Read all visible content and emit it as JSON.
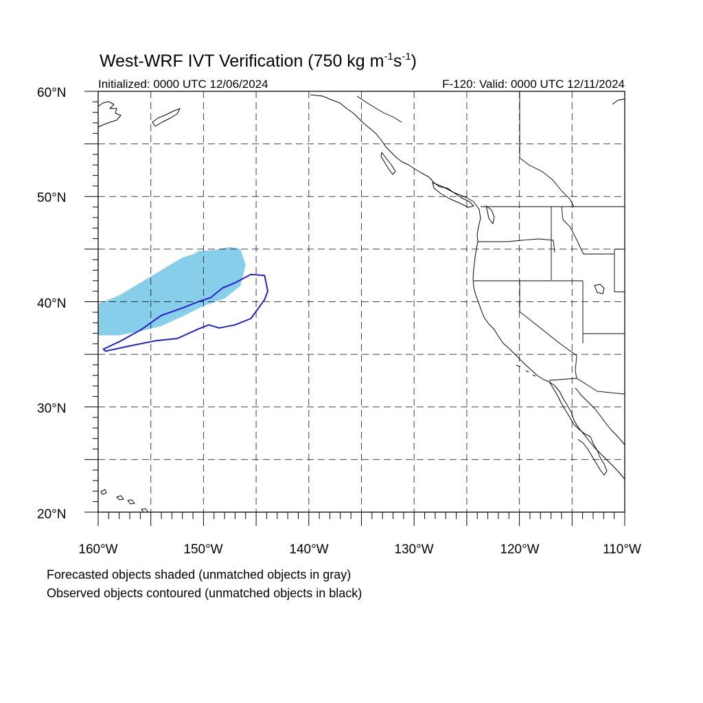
{
  "figure": {
    "title_main": "West-WRF IVT Verification (750 kg m",
    "title_exp1": "-1",
    "title_mid": "s",
    "title_exp2": "-1",
    "title_close": ")",
    "initialized": "Initialized: 0000 UTC 12/06/2024",
    "valid": "F-120: Valid: 0000 UTC 12/11/2024",
    "note_forecast": "Forecasted objects shaded (unmatched objects in gray)",
    "note_observed": "Observed objects contoured (unmatched objects in black)"
  },
  "map": {
    "lon_range": [
      -160,
      -110
    ],
    "lat_range": [
      20,
      60
    ],
    "lat_labels": [
      "60°N",
      "50°N",
      "40°N",
      "30°N",
      "20°N"
    ],
    "lon_labels": [
      "160°W",
      "150°W",
      "140°W",
      "130°W",
      "120°W",
      "110°W"
    ],
    "grid_spacing_deg": 5,
    "grid": "dashed"
  },
  "objects": {
    "forecast": {
      "style": "shaded",
      "color": "#87ceeb",
      "polygon": [
        [
          -160,
          39.8
        ],
        [
          -158,
          40.6
        ],
        [
          -156,
          41.8
        ],
        [
          -154,
          43.0
        ],
        [
          -152,
          44.2
        ],
        [
          -151,
          44.5
        ],
        [
          -150.5,
          44.8
        ],
        [
          -149,
          44.9
        ],
        [
          -147.5,
          45.2
        ],
        [
          -146.5,
          45.0
        ],
        [
          -146.0,
          43.5
        ],
        [
          -146.5,
          41.5
        ],
        [
          -148,
          40.3
        ],
        [
          -150,
          39.6
        ],
        [
          -152,
          38.6
        ],
        [
          -154,
          37.7
        ],
        [
          -156,
          37.2
        ],
        [
          -158,
          36.8
        ],
        [
          -160,
          36.8
        ]
      ]
    },
    "observed": {
      "style": "contour",
      "color": "#1f1fd6",
      "polygon": [
        [
          -159.3,
          35.3
        ],
        [
          -157,
          35.8
        ],
        [
          -154.5,
          36.3
        ],
        [
          -152.5,
          36.5
        ],
        [
          -150.5,
          37.4
        ],
        [
          -149.5,
          37.8
        ],
        [
          -148.5,
          37.5
        ],
        [
          -147,
          37.8
        ],
        [
          -145.5,
          38.4
        ],
        [
          -144.2,
          40.2
        ],
        [
          -143.9,
          41.0
        ],
        [
          -144.2,
          42.5
        ],
        [
          -145.5,
          42.6
        ],
        [
          -147,
          41.8
        ],
        [
          -148.2,
          41.3
        ],
        [
          -149.3,
          40.4
        ],
        [
          -150.5,
          40.0
        ],
        [
          -152,
          39.4
        ],
        [
          -154,
          38.7
        ],
        [
          -156,
          37.3
        ],
        [
          -158,
          36.2
        ],
        [
          -159.5,
          35.5
        ]
      ]
    }
  }
}
